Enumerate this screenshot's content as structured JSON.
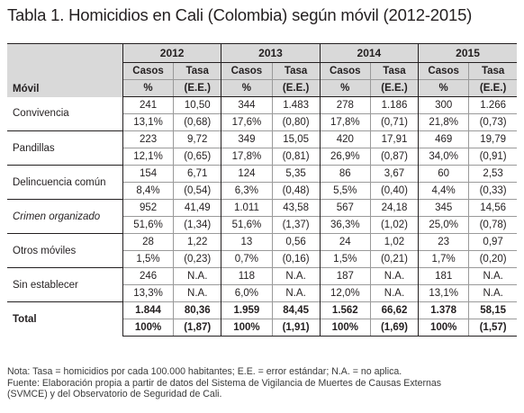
{
  "title": "Tabla 1. Homicidios en Cali (Colombia) según móvil (2012-2015)",
  "header": {
    "movil_label": "Móvil",
    "years": [
      "2012",
      "2013",
      "2014",
      "2015"
    ],
    "casos_label": "Casos",
    "tasa_label": "Tasa",
    "pct_label": "%",
    "ee_label": "(E.E.)"
  },
  "rows": [
    {
      "label": "Convivencia",
      "casos": [
        "241",
        "344",
        "278",
        "300"
      ],
      "tasa": [
        "10,50",
        "1.483",
        "1.186",
        "1.266"
      ],
      "pct": [
        "13,1%",
        "17,6%",
        "17,8%",
        "21,8%"
      ],
      "ee": [
        "(0,68)",
        "(0,80)",
        "(0,71)",
        "(0,73)"
      ]
    },
    {
      "label": "Pandillas",
      "casos": [
        "223",
        "349",
        "420",
        "469"
      ],
      "tasa": [
        "9,72",
        "15,05",
        "17,91",
        "19,79"
      ],
      "pct": [
        "12,1%",
        "17,8%",
        "26,9%",
        "34,0%"
      ],
      "ee": [
        "(0,65)",
        "(0,81)",
        "(0,87)",
        "(0,91)"
      ]
    },
    {
      "label": "Delincuencia común",
      "casos": [
        "154",
        "124",
        "86",
        "60"
      ],
      "tasa": [
        "6,71",
        "5,35",
        "3,67",
        "2,53"
      ],
      "pct": [
        "8,4%",
        "6,3%",
        "5,5%",
        "4,4%"
      ],
      "ee": [
        "(0,54)",
        "(0,48)",
        "(0,40)",
        "(0,33)"
      ]
    },
    {
      "label": "Crimen organizado",
      "italic": true,
      "casos": [
        "952",
        "1.011",
        "567",
        "345"
      ],
      "tasa": [
        "41,49",
        "43,58",
        "24,18",
        "14,56"
      ],
      "pct": [
        "51,6%",
        "51,6%",
        "36,3%",
        "25,0%"
      ],
      "ee": [
        "(1,34)",
        "(1,37)",
        "(1,02)",
        "(0,78)"
      ]
    },
    {
      "label": "Otros móviles",
      "casos": [
        "28",
        "13",
        "24",
        "23"
      ],
      "tasa": [
        "1,22",
        "0,56",
        "1,02",
        "0,97"
      ],
      "pct": [
        "1,5%",
        "0,7%",
        "1,5%",
        "1,7%"
      ],
      "ee": [
        "(0,23)",
        "(0,16)",
        "(0,21)",
        "(0,20)"
      ]
    },
    {
      "label": "Sin establecer",
      "casos": [
        "246",
        "118",
        "187",
        "181"
      ],
      "tasa": [
        "N.A.",
        "N.A.",
        "N.A.",
        "N.A."
      ],
      "pct": [
        "13,3%",
        "6,0%",
        "12,0%",
        "13,1%"
      ],
      "ee": [
        "N.A.",
        "N.A.",
        "N.A.",
        "N.A."
      ]
    }
  ],
  "total": {
    "label": "Total",
    "casos": [
      "1.844",
      "1.959",
      "1.562",
      "1.378"
    ],
    "tasa": [
      "80,36",
      "84,45",
      "66,62",
      "58,15"
    ],
    "pct": [
      "100%",
      "100%",
      "100%",
      "100%"
    ],
    "ee": [
      "(1,87)",
      "(1,91)",
      "(1,69)",
      "(1,57)"
    ]
  },
  "notes": {
    "line1": "Nota: Tasa = homicidios por cada 100.000 habitantes; E.E. = error estándar; N.A. = no aplica.",
    "line2": "Fuente: Elaboración propia a partir de datos del Sistema de Vigilancia de Muertes de Causas Externas",
    "line3": "(SVMCE) y del Observatorio de Seguridad de Cali."
  }
}
